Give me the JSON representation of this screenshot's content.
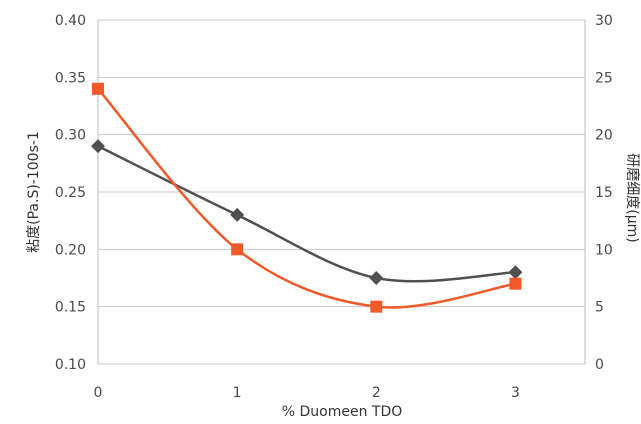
{
  "chart_data": {
    "type": "line",
    "title": "",
    "xlabel": "% Duomeen TDO",
    "ylabel": "粘度(Pa.S)-100s-1",
    "y2label": "研磨细度(µm)",
    "x": [
      0,
      1,
      2,
      3
    ],
    "x_ticks": [
      "0",
      "1",
      "2",
      "3"
    ],
    "ylim": [
      0.1,
      0.4
    ],
    "y_ticks": [
      "0.10",
      "0.15",
      "0.20",
      "0.25",
      "0.30",
      "0.35",
      "0.40"
    ],
    "y2lim": [
      0,
      30
    ],
    "y2_ticks": [
      "0",
      "5",
      "10",
      "15",
      "20",
      "25",
      "30"
    ],
    "grid": "horizontal",
    "legend": "none",
    "series": [
      {
        "axis": "left",
        "marker": "diamond",
        "color": "#505050",
        "values": [
          0.29,
          0.23,
          0.175,
          0.18
        ]
      },
      {
        "axis": "right",
        "marker": "square",
        "color": "#F05A28",
        "values": [
          24,
          10,
          5,
          7
        ]
      }
    ]
  }
}
